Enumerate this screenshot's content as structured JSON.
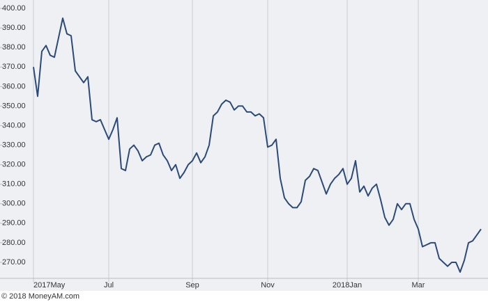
{
  "chart_data": {
    "type": "line",
    "footer": "© 2018 MoneyAM.com",
    "categories": [
      "2017May",
      null,
      null,
      null,
      null,
      null,
      null,
      null,
      null,
      null,
      null,
      null,
      null,
      null,
      null,
      null,
      null,
      null,
      "Jul",
      null,
      null,
      null,
      null,
      null,
      null,
      null,
      null,
      null,
      null,
      null,
      null,
      null,
      null,
      null,
      null,
      null,
      null,
      null,
      "Sep",
      null,
      null,
      null,
      null,
      null,
      null,
      null,
      null,
      null,
      null,
      null,
      null,
      null,
      null,
      null,
      null,
      null,
      "Nov",
      null,
      null,
      null,
      null,
      null,
      null,
      null,
      null,
      null,
      null,
      null,
      null,
      null,
      null,
      null,
      null,
      null,
      null,
      "2018Jan",
      null,
      null,
      null,
      null,
      null,
      null,
      null,
      null,
      null,
      null,
      null,
      null,
      null,
      null,
      null,
      null,
      "Mar",
      null,
      null,
      null,
      null,
      null,
      null,
      null,
      null,
      null,
      null,
      null,
      null,
      null,
      null,
      null
    ],
    "values": [
      370,
      355,
      378,
      381,
      376,
      375,
      385,
      395,
      387,
      386,
      368,
      365,
      362,
      365,
      343,
      342,
      343,
      338,
      333,
      338,
      344,
      318,
      317,
      328,
      330,
      327,
      322,
      324,
      325,
      330,
      331,
      325,
      322,
      317,
      320,
      313,
      316,
      320,
      322,
      326,
      321,
      324,
      330,
      345,
      347,
      351,
      353,
      352,
      348,
      350,
      350,
      347,
      347,
      345,
      346,
      344,
      329,
      330,
      333,
      313,
      303,
      300,
      298,
      298,
      301,
      312,
      314,
      318,
      317,
      311,
      305,
      310,
      313,
      315,
      318,
      310,
      313,
      322,
      306,
      309,
      304,
      308,
      310,
      302,
      293,
      289,
      292,
      300,
      297,
      300,
      300,
      292,
      287,
      278,
      279,
      280,
      280,
      272,
      270,
      268,
      270,
      270,
      265,
      271,
      280,
      281,
      284,
      287
    ],
    "color": "#2c4a78",
    "ylim": [
      261.8,
      404.3
    ],
    "yticks": [
      {
        "value": 270,
        "label": "270.00"
      },
      {
        "value": 280,
        "label": "280.00"
      },
      {
        "value": 290,
        "label": "290.00"
      },
      {
        "value": 300,
        "label": "300.00"
      },
      {
        "value": 310,
        "label": "310.00"
      },
      {
        "value": 320,
        "label": "320.00"
      },
      {
        "value": 330,
        "label": "330.00"
      },
      {
        "value": 340,
        "label": "340.00"
      },
      {
        "value": 350,
        "label": "350.00"
      },
      {
        "value": 360,
        "label": "360.00"
      },
      {
        "value": 370,
        "label": "370.00"
      },
      {
        "value": 380,
        "label": "380.00"
      },
      {
        "value": 390,
        "label": "390.00"
      },
      {
        "value": 400,
        "label": "400.00"
      }
    ],
    "grid": true
  }
}
